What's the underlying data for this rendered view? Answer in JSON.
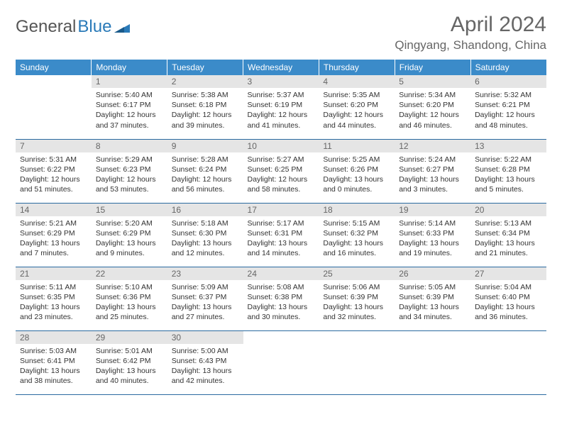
{
  "logo": {
    "text_gray": "General",
    "text_blue": "Blue"
  },
  "title": "April 2024",
  "location": "Qingyang, Shandong, China",
  "colors": {
    "header_bg": "#3b8bc9",
    "header_text": "#ffffff",
    "daynum_bg": "#e5e5e5",
    "daynum_text": "#666666",
    "border": "#2a6aa0",
    "logo_gray": "#555555",
    "logo_blue": "#2a7ab8"
  },
  "weekdays": [
    "Sunday",
    "Monday",
    "Tuesday",
    "Wednesday",
    "Thursday",
    "Friday",
    "Saturday"
  ],
  "weeks": [
    [
      null,
      {
        "n": "1",
        "sr": "5:40 AM",
        "ss": "6:17 PM",
        "dl": "12 hours and 37 minutes."
      },
      {
        "n": "2",
        "sr": "5:38 AM",
        "ss": "6:18 PM",
        "dl": "12 hours and 39 minutes."
      },
      {
        "n": "3",
        "sr": "5:37 AM",
        "ss": "6:19 PM",
        "dl": "12 hours and 41 minutes."
      },
      {
        "n": "4",
        "sr": "5:35 AM",
        "ss": "6:20 PM",
        "dl": "12 hours and 44 minutes."
      },
      {
        "n": "5",
        "sr": "5:34 AM",
        "ss": "6:20 PM",
        "dl": "12 hours and 46 minutes."
      },
      {
        "n": "6",
        "sr": "5:32 AM",
        "ss": "6:21 PM",
        "dl": "12 hours and 48 minutes."
      }
    ],
    [
      {
        "n": "7",
        "sr": "5:31 AM",
        "ss": "6:22 PM",
        "dl": "12 hours and 51 minutes."
      },
      {
        "n": "8",
        "sr": "5:29 AM",
        "ss": "6:23 PM",
        "dl": "12 hours and 53 minutes."
      },
      {
        "n": "9",
        "sr": "5:28 AM",
        "ss": "6:24 PM",
        "dl": "12 hours and 56 minutes."
      },
      {
        "n": "10",
        "sr": "5:27 AM",
        "ss": "6:25 PM",
        "dl": "12 hours and 58 minutes."
      },
      {
        "n": "11",
        "sr": "5:25 AM",
        "ss": "6:26 PM",
        "dl": "13 hours and 0 minutes."
      },
      {
        "n": "12",
        "sr": "5:24 AM",
        "ss": "6:27 PM",
        "dl": "13 hours and 3 minutes."
      },
      {
        "n": "13",
        "sr": "5:22 AM",
        "ss": "6:28 PM",
        "dl": "13 hours and 5 minutes."
      }
    ],
    [
      {
        "n": "14",
        "sr": "5:21 AM",
        "ss": "6:29 PM",
        "dl": "13 hours and 7 minutes."
      },
      {
        "n": "15",
        "sr": "5:20 AM",
        "ss": "6:29 PM",
        "dl": "13 hours and 9 minutes."
      },
      {
        "n": "16",
        "sr": "5:18 AM",
        "ss": "6:30 PM",
        "dl": "13 hours and 12 minutes."
      },
      {
        "n": "17",
        "sr": "5:17 AM",
        "ss": "6:31 PM",
        "dl": "13 hours and 14 minutes."
      },
      {
        "n": "18",
        "sr": "5:15 AM",
        "ss": "6:32 PM",
        "dl": "13 hours and 16 minutes."
      },
      {
        "n": "19",
        "sr": "5:14 AM",
        "ss": "6:33 PM",
        "dl": "13 hours and 19 minutes."
      },
      {
        "n": "20",
        "sr": "5:13 AM",
        "ss": "6:34 PM",
        "dl": "13 hours and 21 minutes."
      }
    ],
    [
      {
        "n": "21",
        "sr": "5:11 AM",
        "ss": "6:35 PM",
        "dl": "13 hours and 23 minutes."
      },
      {
        "n": "22",
        "sr": "5:10 AM",
        "ss": "6:36 PM",
        "dl": "13 hours and 25 minutes."
      },
      {
        "n": "23",
        "sr": "5:09 AM",
        "ss": "6:37 PM",
        "dl": "13 hours and 27 minutes."
      },
      {
        "n": "24",
        "sr": "5:08 AM",
        "ss": "6:38 PM",
        "dl": "13 hours and 30 minutes."
      },
      {
        "n": "25",
        "sr": "5:06 AM",
        "ss": "6:39 PM",
        "dl": "13 hours and 32 minutes."
      },
      {
        "n": "26",
        "sr": "5:05 AM",
        "ss": "6:39 PM",
        "dl": "13 hours and 34 minutes."
      },
      {
        "n": "27",
        "sr": "5:04 AM",
        "ss": "6:40 PM",
        "dl": "13 hours and 36 minutes."
      }
    ],
    [
      {
        "n": "28",
        "sr": "5:03 AM",
        "ss": "6:41 PM",
        "dl": "13 hours and 38 minutes."
      },
      {
        "n": "29",
        "sr": "5:01 AM",
        "ss": "6:42 PM",
        "dl": "13 hours and 40 minutes."
      },
      {
        "n": "30",
        "sr": "5:00 AM",
        "ss": "6:43 PM",
        "dl": "13 hours and 42 minutes."
      },
      null,
      null,
      null,
      null
    ]
  ],
  "labels": {
    "sunrise": "Sunrise:",
    "sunset": "Sunset:",
    "daylight": "Daylight:"
  }
}
